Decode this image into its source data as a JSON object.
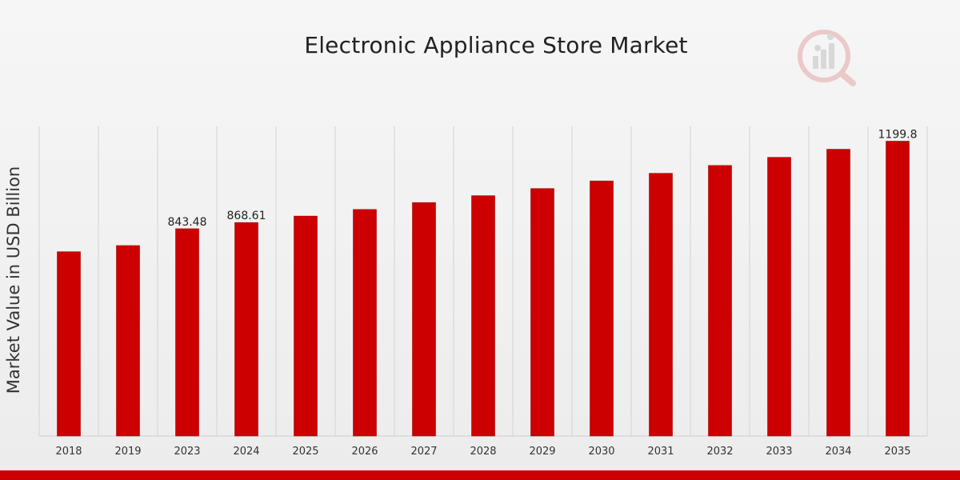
{
  "chart_data": {
    "type": "bar",
    "title": "Electronic Appliance Store Market",
    "xlabel": "",
    "ylabel": "Market Value in USD Billion",
    "categories": [
      "2018",
      "2019",
      "2023",
      "2024",
      "2025",
      "2026",
      "2027",
      "2028",
      "2029",
      "2030",
      "2031",
      "2032",
      "2033",
      "2034",
      "2035"
    ],
    "series": [
      {
        "values": [
          750.0,
          775.0,
          843.48,
          868.61,
          895.0,
          922.0,
          950.0,
          978.0,
          1007.0,
          1038.0,
          1069.0,
          1101.0,
          1134.0,
          1167.0,
          1199.8
        ]
      }
    ],
    "data_labels": [
      null,
      null,
      "843.48",
      "868.61",
      null,
      null,
      null,
      null,
      null,
      null,
      null,
      null,
      null,
      null,
      "1199.8"
    ],
    "ylim": [
      0,
      1260
    ],
    "grid": "vertical",
    "legend": "none",
    "colors": {
      "bar": "#cc0000",
      "bar_edge": "#a30000",
      "grid": "#d2d2d2",
      "accent_bar": "#cc0000"
    }
  },
  "logo": {
    "icon": "bar-chart-magnifier-icon",
    "color": "#cc3333"
  }
}
